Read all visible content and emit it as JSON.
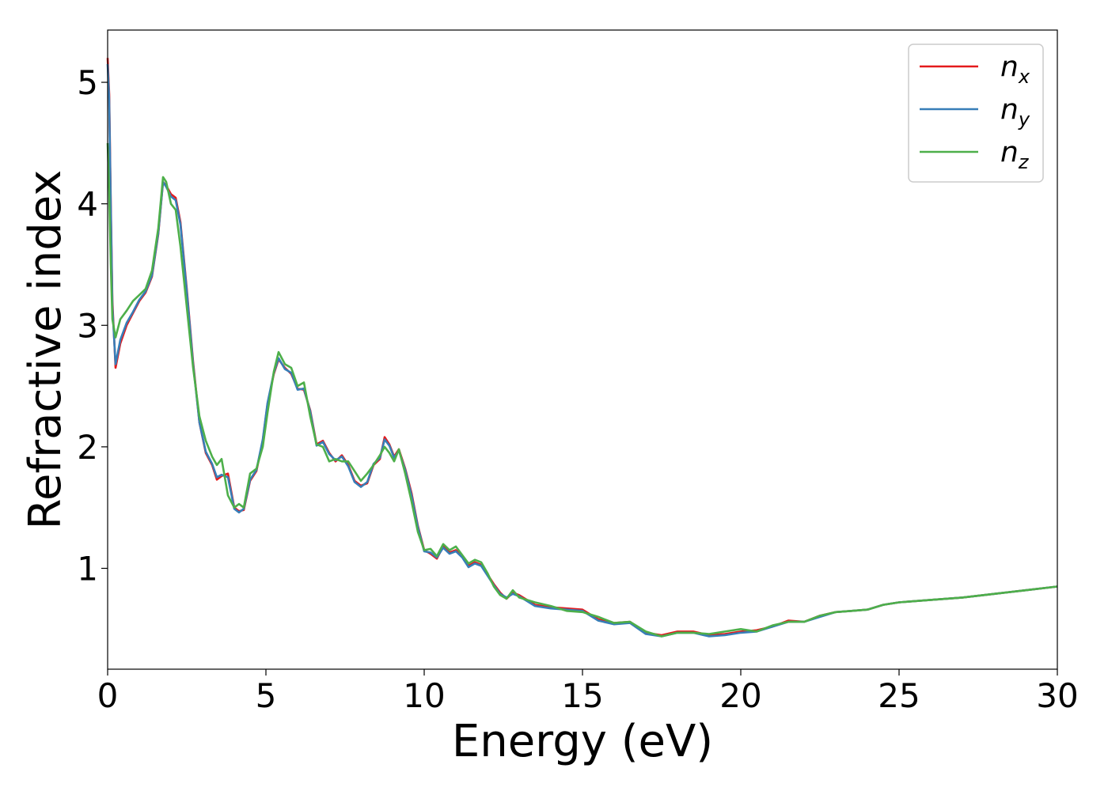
{
  "chart_data": {
    "type": "line",
    "title": "",
    "xlabel": "Energy (eV)",
    "ylabel": "Refractive index",
    "xlim": [
      0,
      30
    ],
    "ylim": [
      0.17,
      5.43
    ],
    "x_ticks": [
      0,
      5,
      10,
      15,
      20,
      25,
      30
    ],
    "y_ticks": [
      1,
      2,
      3,
      4,
      5
    ],
    "grid": false,
    "legend_position": "top-right",
    "series": [
      {
        "name": "n",
        "subscript": "x",
        "color": "#e41a1c",
        "points": [
          [
            0,
            5.2
          ],
          [
            0.05,
            4.9
          ],
          [
            0.1,
            4.0
          ],
          [
            0.15,
            3.2
          ],
          [
            0.25,
            2.65
          ],
          [
            0.4,
            2.85
          ],
          [
            0.6,
            3.0
          ],
          [
            0.8,
            3.1
          ],
          [
            1.0,
            3.2
          ],
          [
            1.2,
            3.27
          ],
          [
            1.4,
            3.4
          ],
          [
            1.6,
            3.75
          ],
          [
            1.75,
            4.18
          ],
          [
            1.85,
            4.15
          ],
          [
            2.0,
            4.08
          ],
          [
            2.15,
            4.05
          ],
          [
            2.3,
            3.85
          ],
          [
            2.5,
            3.3
          ],
          [
            2.7,
            2.7
          ],
          [
            2.9,
            2.2
          ],
          [
            3.1,
            1.95
          ],
          [
            3.3,
            1.85
          ],
          [
            3.45,
            1.73
          ],
          [
            3.6,
            1.76
          ],
          [
            3.8,
            1.78
          ],
          [
            4.0,
            1.5
          ],
          [
            4.15,
            1.47
          ],
          [
            4.3,
            1.48
          ],
          [
            4.5,
            1.72
          ],
          [
            4.7,
            1.8
          ],
          [
            4.9,
            2.05
          ],
          [
            5.05,
            2.35
          ],
          [
            5.25,
            2.6
          ],
          [
            5.4,
            2.72
          ],
          [
            5.6,
            2.65
          ],
          [
            5.8,
            2.6
          ],
          [
            6.0,
            2.48
          ],
          [
            6.2,
            2.47
          ],
          [
            6.4,
            2.3
          ],
          [
            6.6,
            2.02
          ],
          [
            6.8,
            2.05
          ],
          [
            7.0,
            1.95
          ],
          [
            7.2,
            1.88
          ],
          [
            7.4,
            1.93
          ],
          [
            7.6,
            1.85
          ],
          [
            7.8,
            1.72
          ],
          [
            8.0,
            1.68
          ],
          [
            8.2,
            1.7
          ],
          [
            8.4,
            1.85
          ],
          [
            8.6,
            1.9
          ],
          [
            8.75,
            2.08
          ],
          [
            8.9,
            2.02
          ],
          [
            9.05,
            1.92
          ],
          [
            9.2,
            1.98
          ],
          [
            9.4,
            1.82
          ],
          [
            9.6,
            1.62
          ],
          [
            9.8,
            1.35
          ],
          [
            10.0,
            1.15
          ],
          [
            10.2,
            1.12
          ],
          [
            10.4,
            1.08
          ],
          [
            10.6,
            1.18
          ],
          [
            10.8,
            1.13
          ],
          [
            11.0,
            1.15
          ],
          [
            11.2,
            1.1
          ],
          [
            11.4,
            1.02
          ],
          [
            11.6,
            1.05
          ],
          [
            11.8,
            1.03
          ],
          [
            12.0,
            0.95
          ],
          [
            12.2,
            0.87
          ],
          [
            12.4,
            0.8
          ],
          [
            12.6,
            0.75
          ],
          [
            12.8,
            0.8
          ],
          [
            13.0,
            0.78
          ],
          [
            13.5,
            0.7
          ],
          [
            14.0,
            0.68
          ],
          [
            14.5,
            0.67
          ],
          [
            15.0,
            0.66
          ],
          [
            15.5,
            0.58
          ],
          [
            16.0,
            0.55
          ],
          [
            16.5,
            0.56
          ],
          [
            17.0,
            0.47
          ],
          [
            17.5,
            0.45
          ],
          [
            18.0,
            0.48
          ],
          [
            18.5,
            0.48
          ],
          [
            19.0,
            0.45
          ],
          [
            19.5,
            0.46
          ],
          [
            20.0,
            0.48
          ],
          [
            20.5,
            0.49
          ],
          [
            21.0,
            0.52
          ],
          [
            21.5,
            0.57
          ],
          [
            22.0,
            0.56
          ],
          [
            22.5,
            0.61
          ],
          [
            23.0,
            0.64
          ],
          [
            23.5,
            0.65
          ],
          [
            24.0,
            0.66
          ],
          [
            24.5,
            0.7
          ],
          [
            25.0,
            0.72
          ],
          [
            26.0,
            0.74
          ],
          [
            27.0,
            0.76
          ],
          [
            28.0,
            0.79
          ],
          [
            29.0,
            0.82
          ],
          [
            30.0,
            0.85
          ]
        ]
      },
      {
        "name": "n",
        "subscript": "y",
        "color": "#377eb8",
        "points": [
          [
            0,
            5.15
          ],
          [
            0.05,
            4.85
          ],
          [
            0.1,
            3.95
          ],
          [
            0.15,
            3.15
          ],
          [
            0.25,
            2.68
          ],
          [
            0.4,
            2.88
          ],
          [
            0.6,
            3.02
          ],
          [
            0.8,
            3.11
          ],
          [
            1.0,
            3.21
          ],
          [
            1.2,
            3.28
          ],
          [
            1.4,
            3.41
          ],
          [
            1.6,
            3.76
          ],
          [
            1.75,
            4.18
          ],
          [
            1.85,
            4.14
          ],
          [
            2.0,
            4.06
          ],
          [
            2.15,
            4.03
          ],
          [
            2.3,
            3.83
          ],
          [
            2.5,
            3.28
          ],
          [
            2.7,
            2.68
          ],
          [
            2.9,
            2.2
          ],
          [
            3.1,
            1.96
          ],
          [
            3.3,
            1.86
          ],
          [
            3.45,
            1.75
          ],
          [
            3.6,
            1.77
          ],
          [
            3.8,
            1.75
          ],
          [
            4.0,
            1.49
          ],
          [
            4.15,
            1.46
          ],
          [
            4.3,
            1.49
          ],
          [
            4.5,
            1.73
          ],
          [
            4.7,
            1.81
          ],
          [
            4.9,
            2.06
          ],
          [
            5.05,
            2.36
          ],
          [
            5.25,
            2.61
          ],
          [
            5.4,
            2.73
          ],
          [
            5.6,
            2.64
          ],
          [
            5.8,
            2.61
          ],
          [
            6.0,
            2.47
          ],
          [
            6.2,
            2.48
          ],
          [
            6.4,
            2.29
          ],
          [
            6.6,
            2.01
          ],
          [
            6.8,
            2.04
          ],
          [
            7.0,
            1.94
          ],
          [
            7.2,
            1.89
          ],
          [
            7.4,
            1.92
          ],
          [
            7.6,
            1.84
          ],
          [
            7.8,
            1.71
          ],
          [
            8.0,
            1.67
          ],
          [
            8.2,
            1.71
          ],
          [
            8.4,
            1.86
          ],
          [
            8.6,
            1.91
          ],
          [
            8.75,
            2.06
          ],
          [
            8.9,
            2.01
          ],
          [
            9.05,
            1.91
          ],
          [
            9.2,
            1.97
          ],
          [
            9.4,
            1.81
          ],
          [
            9.6,
            1.6
          ],
          [
            9.8,
            1.34
          ],
          [
            10.0,
            1.14
          ],
          [
            10.2,
            1.13
          ],
          [
            10.4,
            1.09
          ],
          [
            10.6,
            1.17
          ],
          [
            10.8,
            1.12
          ],
          [
            11.0,
            1.14
          ],
          [
            11.2,
            1.09
          ],
          [
            11.4,
            1.01
          ],
          [
            11.6,
            1.04
          ],
          [
            11.8,
            1.02
          ],
          [
            12.0,
            0.94
          ],
          [
            12.2,
            0.86
          ],
          [
            12.4,
            0.79
          ],
          [
            12.6,
            0.76
          ],
          [
            12.8,
            0.79
          ],
          [
            13.0,
            0.77
          ],
          [
            13.5,
            0.69
          ],
          [
            14.0,
            0.67
          ],
          [
            14.5,
            0.66
          ],
          [
            15.0,
            0.65
          ],
          [
            15.5,
            0.57
          ],
          [
            16.0,
            0.54
          ],
          [
            16.5,
            0.55
          ],
          [
            17.0,
            0.46
          ],
          [
            17.5,
            0.44
          ],
          [
            18.0,
            0.47
          ],
          [
            18.5,
            0.47
          ],
          [
            19.0,
            0.44
          ],
          [
            19.5,
            0.45
          ],
          [
            20.0,
            0.47
          ],
          [
            20.5,
            0.48
          ],
          [
            21.0,
            0.52
          ],
          [
            21.5,
            0.56
          ],
          [
            22.0,
            0.56
          ],
          [
            22.5,
            0.6
          ],
          [
            23.0,
            0.64
          ],
          [
            23.5,
            0.65
          ],
          [
            24.0,
            0.66
          ],
          [
            24.5,
            0.7
          ],
          [
            25.0,
            0.72
          ],
          [
            26.0,
            0.74
          ],
          [
            27.0,
            0.76
          ],
          [
            28.0,
            0.79
          ],
          [
            29.0,
            0.82
          ],
          [
            30.0,
            0.85
          ]
        ]
      },
      {
        "name": "n",
        "subscript": "z",
        "color": "#4daf4a",
        "points": [
          [
            0,
            4.5
          ],
          [
            0.05,
            4.1
          ],
          [
            0.1,
            3.5
          ],
          [
            0.15,
            3.05
          ],
          [
            0.25,
            2.9
          ],
          [
            0.4,
            3.05
          ],
          [
            0.6,
            3.12
          ],
          [
            0.8,
            3.2
          ],
          [
            1.0,
            3.25
          ],
          [
            1.2,
            3.3
          ],
          [
            1.4,
            3.45
          ],
          [
            1.6,
            3.8
          ],
          [
            1.75,
            4.22
          ],
          [
            1.85,
            4.18
          ],
          [
            2.0,
            4.0
          ],
          [
            2.15,
            3.95
          ],
          [
            2.3,
            3.65
          ],
          [
            2.5,
            3.15
          ],
          [
            2.7,
            2.65
          ],
          [
            2.9,
            2.25
          ],
          [
            3.1,
            2.05
          ],
          [
            3.3,
            1.92
          ],
          [
            3.45,
            1.85
          ],
          [
            3.6,
            1.9
          ],
          [
            3.8,
            1.6
          ],
          [
            4.0,
            1.5
          ],
          [
            4.15,
            1.53
          ],
          [
            4.3,
            1.5
          ],
          [
            4.5,
            1.78
          ],
          [
            4.7,
            1.82
          ],
          [
            4.9,
            2.0
          ],
          [
            5.05,
            2.28
          ],
          [
            5.25,
            2.62
          ],
          [
            5.4,
            2.78
          ],
          [
            5.6,
            2.68
          ],
          [
            5.8,
            2.65
          ],
          [
            6.0,
            2.5
          ],
          [
            6.2,
            2.53
          ],
          [
            6.4,
            2.25
          ],
          [
            6.6,
            2.02
          ],
          [
            6.8,
            2.0
          ],
          [
            7.0,
            1.88
          ],
          [
            7.2,
            1.9
          ],
          [
            7.4,
            1.88
          ],
          [
            7.6,
            1.88
          ],
          [
            7.8,
            1.8
          ],
          [
            8.0,
            1.72
          ],
          [
            8.2,
            1.78
          ],
          [
            8.4,
            1.85
          ],
          [
            8.6,
            1.93
          ],
          [
            8.75,
            2.0
          ],
          [
            8.9,
            1.95
          ],
          [
            9.05,
            1.88
          ],
          [
            9.2,
            1.98
          ],
          [
            9.4,
            1.78
          ],
          [
            9.6,
            1.55
          ],
          [
            9.8,
            1.3
          ],
          [
            10.0,
            1.15
          ],
          [
            10.2,
            1.16
          ],
          [
            10.4,
            1.1
          ],
          [
            10.6,
            1.2
          ],
          [
            10.8,
            1.15
          ],
          [
            11.0,
            1.18
          ],
          [
            11.2,
            1.11
          ],
          [
            11.4,
            1.04
          ],
          [
            11.6,
            1.07
          ],
          [
            11.8,
            1.05
          ],
          [
            12.0,
            0.96
          ],
          [
            12.2,
            0.85
          ],
          [
            12.4,
            0.78
          ],
          [
            12.6,
            0.75
          ],
          [
            12.8,
            0.82
          ],
          [
            13.0,
            0.76
          ],
          [
            13.5,
            0.72
          ],
          [
            14.0,
            0.69
          ],
          [
            14.5,
            0.65
          ],
          [
            15.0,
            0.64
          ],
          [
            15.5,
            0.6
          ],
          [
            16.0,
            0.55
          ],
          [
            16.5,
            0.56
          ],
          [
            17.0,
            0.48
          ],
          [
            17.5,
            0.44
          ],
          [
            18.0,
            0.47
          ],
          [
            18.5,
            0.47
          ],
          [
            19.0,
            0.46
          ],
          [
            19.5,
            0.48
          ],
          [
            20.0,
            0.5
          ],
          [
            20.5,
            0.48
          ],
          [
            21.0,
            0.53
          ],
          [
            21.5,
            0.56
          ],
          [
            22.0,
            0.56
          ],
          [
            22.5,
            0.61
          ],
          [
            23.0,
            0.64
          ],
          [
            23.5,
            0.65
          ],
          [
            24.0,
            0.66
          ],
          [
            24.5,
            0.7
          ],
          [
            25.0,
            0.72
          ],
          [
            26.0,
            0.74
          ],
          [
            27.0,
            0.76
          ],
          [
            28.0,
            0.79
          ],
          [
            29.0,
            0.82
          ],
          [
            30.0,
            0.85
          ]
        ]
      }
    ]
  }
}
